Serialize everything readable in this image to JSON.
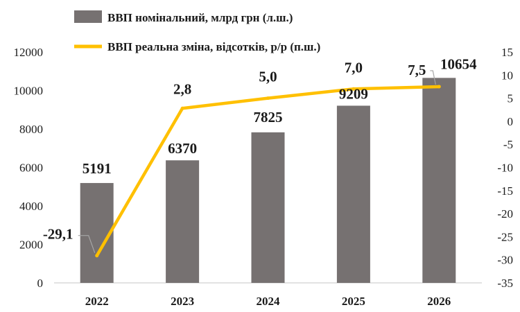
{
  "chart_data": {
    "type": "bar",
    "categories": [
      "2022",
      "2023",
      "2024",
      "2025",
      "2026"
    ],
    "series": [
      {
        "name": "ВВП номінальний, млрд грн (л.ш.)",
        "type": "bar",
        "axis": "left",
        "values": [
          5191,
          6370,
          7825,
          9209,
          10654
        ],
        "labels": [
          "5191",
          "6370",
          "7825",
          "9209",
          "10654"
        ]
      },
      {
        "name": "ВВП реальна зміна, відсотків, р/р (п.ш.)",
        "type": "line",
        "axis": "right",
        "values": [
          -29.1,
          2.8,
          5.0,
          7.0,
          7.5
        ],
        "labels": [
          "-29,1",
          "2,8",
          "5,0",
          "7,0",
          "7,5"
        ]
      }
    ],
    "y_left": {
      "ylim": [
        0,
        12000
      ],
      "ticks": [
        0,
        2000,
        4000,
        6000,
        8000,
        10000,
        12000
      ],
      "tick_labels": [
        "0",
        "2000",
        "4000",
        "6000",
        "8000",
        "10000",
        "12000"
      ]
    },
    "y_right": {
      "ylim": [
        -35,
        15
      ],
      "ticks": [
        -35,
        -30,
        -25,
        -20,
        -15,
        -10,
        -5,
        0,
        5,
        10,
        15
      ],
      "tick_labels": [
        "-35",
        "-30",
        "-25",
        "-20",
        "-15",
        "-10",
        "-5",
        "0",
        "5",
        "10",
        "15"
      ]
    },
    "grid": false,
    "legend_position": "top",
    "colors": {
      "bar": "#767171",
      "line": "#FFC000",
      "axis": "#d9d9d9",
      "leader": "#a6a6a6",
      "text": "#1a1a1a"
    }
  }
}
